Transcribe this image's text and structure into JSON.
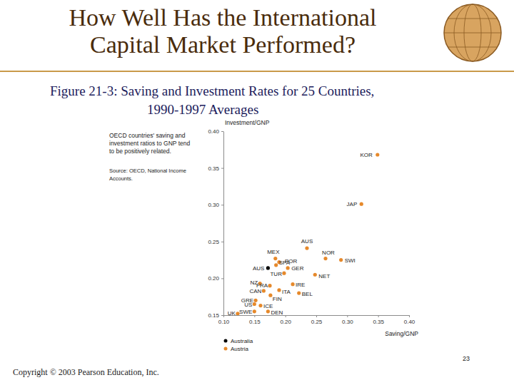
{
  "slide": {
    "title": [
      "How Well Has the International",
      "Capital Market Performed?"
    ],
    "caption": [
      "Figure 21-3: Saving and Investment Rates for 25 Countries,",
      "1990-1997 Averages"
    ],
    "page_number": "23",
    "copyright": "Copyright © 2003 Pearson Education, Inc."
  },
  "chart_data": {
    "type": "scatter",
    "annotation": [
      "OECD countries' saving and",
      "investment ratios to GNP tend",
      "to be positively related."
    ],
    "source": [
      "Source: OECD, National Income",
      "Accounts."
    ],
    "x_label": "Saving/GNP",
    "y_label": "Investment/GNP",
    "labels": [
      "KOR",
      "JAP",
      "AUS",
      "NOR",
      "SWI",
      "MEX",
      "POR",
      "AUS",
      "SPA",
      "GER",
      "TUR",
      "NET",
      "NZ",
      "FRA",
      "IRE",
      "CAN",
      "ITA",
      "BEL",
      "GRE",
      "FIN",
      "US",
      "ICE",
      "UK",
      "SWE",
      "DEN"
    ],
    "x": [
      0.349,
      0.323,
      0.235,
      0.265,
      0.29,
      0.184,
      0.19,
      0.172,
      0.185,
      0.204,
      0.198,
      0.248,
      0.159,
      0.175,
      0.212,
      0.165,
      0.19,
      0.222,
      0.152,
      0.176,
      0.15,
      0.16,
      0.123,
      0.15,
      0.172
    ],
    "values": [
      0.368,
      0.301,
      0.241,
      0.227,
      0.225,
      0.227,
      0.222,
      0.214,
      0.218,
      0.214,
      0.207,
      0.205,
      0.193,
      0.19,
      0.192,
      0.183,
      0.184,
      0.18,
      0.17,
      0.177,
      0.165,
      0.163,
      0.152,
      0.155,
      0.155
    ],
    "colors": [
      "#e6892b",
      "#e6892b",
      "#e6892b",
      "#e6892b",
      "#e6892b",
      "#e6892b",
      "#e6892b",
      "#000000",
      "#e6892b",
      "#e6892b",
      "#e6892b",
      "#e6892b",
      "#e6892b",
      "#e6892b",
      "#e6892b",
      "#e6892b",
      "#e6892b",
      "#e6892b",
      "#e6892b",
      "#e6892b",
      "#e6892b",
      "#e6892b",
      "#e6892b",
      "#e6892b",
      "#e6892b"
    ],
    "legend_entries": [
      {
        "label": "Australia",
        "color": "#000000"
      },
      {
        "label": "Austria",
        "color": "#e6892b"
      }
    ],
    "xlim": [
      0.1,
      0.4
    ],
    "ylim": [
      0.15,
      0.4
    ],
    "xticks": [
      {
        "value": 0.1,
        "label": "0.10"
      },
      {
        "value": 0.15,
        "label": "0.15"
      },
      {
        "value": 0.2,
        "label": "0.20"
      },
      {
        "value": 0.25,
        "label": "0.25"
      },
      {
        "value": 0.3,
        "label": "0.30"
      },
      {
        "value": 0.35,
        "label": "0.35"
      },
      {
        "value": 0.4,
        "label": "0.40"
      }
    ],
    "yticks": [
      {
        "value": 0.15,
        "label": "0.15"
      },
      {
        "value": 0.2,
        "label": "0.20"
      },
      {
        "value": 0.25,
        "label": "0.25"
      },
      {
        "value": 0.3,
        "label": "0.30"
      },
      {
        "value": 0.35,
        "label": "0.35"
      },
      {
        "value": 0.4,
        "label": "0.40"
      }
    ],
    "grid": false
  }
}
